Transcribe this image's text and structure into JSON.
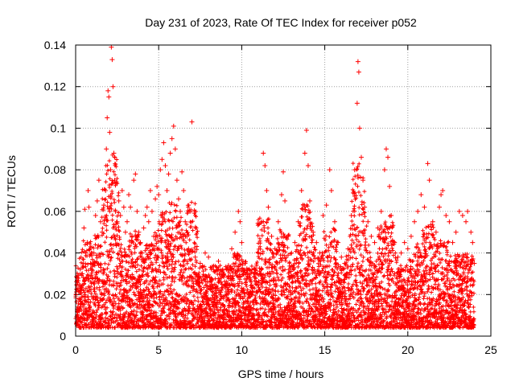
{
  "chart_data": {
    "type": "scatter",
    "title": "Day 231 of 2023, Rate Of TEC Index for receiver p052",
    "xlabel": "GPS time / hours",
    "ylabel": "ROTI / TECUs",
    "xlim": [
      0,
      25
    ],
    "ylim": [
      0,
      0.14
    ],
    "xticks": [
      0,
      5,
      10,
      15,
      20,
      25
    ],
    "xtick_labels": [
      "0",
      "5",
      "10",
      "15",
      "20",
      "25"
    ],
    "yticks": [
      0,
      0.02,
      0.04,
      0.06,
      0.08,
      0.1,
      0.12,
      0.14
    ],
    "ytick_labels": [
      "0",
      "0.02",
      "0.04",
      "0.06",
      "0.08",
      "0.1",
      "0.12",
      "0.14"
    ],
    "grid": true,
    "marker": "+",
    "color": "#ff0000",
    "series": [
      {
        "points": [
          [
            0.1,
            0.012
          ],
          [
            0.2,
            0.018
          ],
          [
            0.3,
            0.022
          ],
          [
            0.4,
            0.03
          ],
          [
            0.5,
            0.052
          ],
          [
            0.55,
            0.061
          ],
          [
            0.6,
            0.04
          ],
          [
            0.7,
            0.045
          ],
          [
            0.75,
            0.07
          ],
          [
            0.8,
            0.062
          ],
          [
            0.9,
            0.035
          ],
          [
            1.0,
            0.028
          ],
          [
            1.1,
            0.04
          ],
          [
            1.2,
            0.058
          ],
          [
            1.3,
            0.065
          ],
          [
            1.4,
            0.075
          ],
          [
            1.5,
            0.055
          ],
          [
            1.6,
            0.05
          ],
          [
            1.7,
            0.063
          ],
          [
            1.8,
            0.07
          ],
          [
            1.85,
            0.09
          ],
          [
            1.9,
            0.105
          ],
          [
            1.95,
            0.118
          ],
          [
            2.0,
            0.115
          ],
          [
            2.05,
            0.098
          ],
          [
            2.1,
            0.08
          ],
          [
            2.15,
            0.139
          ],
          [
            2.2,
            0.133
          ],
          [
            2.25,
            0.12
          ],
          [
            2.3,
            0.088
          ],
          [
            2.35,
            0.075
          ],
          [
            2.4,
            0.06
          ],
          [
            2.5,
            0.055
          ],
          [
            2.6,
            0.065
          ],
          [
            2.7,
            0.058
          ],
          [
            2.8,
            0.07
          ],
          [
            2.9,
            0.062
          ],
          [
            3.0,
            0.05
          ],
          [
            3.1,
            0.055
          ],
          [
            3.2,
            0.068
          ],
          [
            3.3,
            0.062
          ],
          [
            3.4,
            0.048
          ],
          [
            3.5,
            0.075
          ],
          [
            3.6,
            0.078
          ],
          [
            3.7,
            0.06
          ],
          [
            3.8,
            0.05
          ],
          [
            3.9,
            0.045
          ],
          [
            4.0,
            0.04
          ],
          [
            4.1,
            0.052
          ],
          [
            4.2,
            0.058
          ],
          [
            4.3,
            0.062
          ],
          [
            4.4,
            0.055
          ],
          [
            4.5,
            0.07
          ],
          [
            4.6,
            0.06
          ],
          [
            4.7,
            0.048
          ],
          [
            4.8,
            0.066
          ],
          [
            4.9,
            0.072
          ],
          [
            5.0,
            0.068
          ],
          [
            5.1,
            0.08
          ],
          [
            5.2,
            0.085
          ],
          [
            5.3,
            0.093
          ],
          [
            5.4,
            0.082
          ],
          [
            5.5,
            0.07
          ],
          [
            5.6,
            0.078
          ],
          [
            5.7,
            0.088
          ],
          [
            5.8,
            0.095
          ],
          [
            5.9,
            0.101
          ],
          [
            6.0,
            0.09
          ],
          [
            6.1,
            0.075
          ],
          [
            6.2,
            0.066
          ],
          [
            6.3,
            0.06
          ],
          [
            6.4,
            0.079
          ],
          [
            6.5,
            0.07
          ],
          [
            6.6,
            0.055
          ],
          [
            6.7,
            0.048
          ],
          [
            6.8,
            0.042
          ],
          [
            7.0,
            0.103
          ],
          [
            7.2,
            0.038
          ],
          [
            7.5,
            0.035
          ],
          [
            7.8,
            0.04
          ],
          [
            8.0,
            0.038
          ],
          [
            8.3,
            0.032
          ],
          [
            8.6,
            0.036
          ],
          [
            8.9,
            0.03
          ],
          [
            9.2,
            0.034
          ],
          [
            9.4,
            0.042
          ],
          [
            9.6,
            0.05
          ],
          [
            9.8,
            0.06
          ],
          [
            9.9,
            0.055
          ],
          [
            10.0,
            0.045
          ],
          [
            10.2,
            0.035
          ],
          [
            10.5,
            0.028
          ],
          [
            10.8,
            0.032
          ],
          [
            11.0,
            0.04
          ],
          [
            11.2,
            0.055
          ],
          [
            11.3,
            0.088
          ],
          [
            11.4,
            0.082
          ],
          [
            11.5,
            0.07
          ],
          [
            11.6,
            0.062
          ],
          [
            11.8,
            0.048
          ],
          [
            12.0,
            0.042
          ],
          [
            12.2,
            0.055
          ],
          [
            12.4,
            0.068
          ],
          [
            12.5,
            0.079
          ],
          [
            12.6,
            0.065
          ],
          [
            12.8,
            0.048
          ],
          [
            13.0,
            0.04
          ],
          [
            13.2,
            0.045
          ],
          [
            13.4,
            0.055
          ],
          [
            13.6,
            0.07
          ],
          [
            13.8,
            0.088
          ],
          [
            13.9,
            0.099
          ],
          [
            14.0,
            0.082
          ],
          [
            14.1,
            0.065
          ],
          [
            14.3,
            0.05
          ],
          [
            14.5,
            0.045
          ],
          [
            14.7,
            0.04
          ],
          [
            14.9,
            0.058
          ],
          [
            15.1,
            0.063
          ],
          [
            15.3,
            0.08
          ],
          [
            15.4,
            0.07
          ],
          [
            15.6,
            0.055
          ],
          [
            15.8,
            0.045
          ],
          [
            16.0,
            0.038
          ],
          [
            16.2,
            0.035
          ],
          [
            16.4,
            0.042
          ],
          [
            16.6,
            0.058
          ],
          [
            16.8,
            0.08
          ],
          [
            16.95,
            0.112
          ],
          [
            17.0,
            0.132
          ],
          [
            17.05,
            0.127
          ],
          [
            17.1,
            0.1
          ],
          [
            17.2,
            0.086
          ],
          [
            17.3,
            0.075
          ],
          [
            17.4,
            0.062
          ],
          [
            17.6,
            0.055
          ],
          [
            17.8,
            0.048
          ],
          [
            18.0,
            0.045
          ],
          [
            18.2,
            0.052
          ],
          [
            18.4,
            0.06
          ],
          [
            18.6,
            0.08
          ],
          [
            18.7,
            0.09
          ],
          [
            18.8,
            0.086
          ],
          [
            18.9,
            0.072
          ],
          [
            19.0,
            0.058
          ],
          [
            19.2,
            0.045
          ],
          [
            19.4,
            0.038
          ],
          [
            19.6,
            0.04
          ],
          [
            19.8,
            0.045
          ],
          [
            20.0,
            0.042
          ],
          [
            20.2,
            0.048
          ],
          [
            20.4,
            0.055
          ],
          [
            20.6,
            0.06
          ],
          [
            20.8,
            0.068
          ],
          [
            21.0,
            0.062
          ],
          [
            21.2,
            0.083
          ],
          [
            21.3,
            0.075
          ],
          [
            21.5,
            0.055
          ],
          [
            21.7,
            0.05
          ],
          [
            21.9,
            0.062
          ],
          [
            22.0,
            0.068
          ],
          [
            22.1,
            0.07
          ],
          [
            22.3,
            0.058
          ],
          [
            22.5,
            0.055
          ],
          [
            22.7,
            0.045
          ],
          [
            22.9,
            0.05
          ],
          [
            23.1,
            0.06
          ],
          [
            23.3,
            0.058
          ],
          [
            23.5,
            0.055
          ],
          [
            23.6,
            0.06
          ],
          [
            23.8,
            0.05
          ],
          [
            23.9,
            0.045
          ],
          [
            24.0,
            0.035
          ]
        ]
      }
    ]
  }
}
